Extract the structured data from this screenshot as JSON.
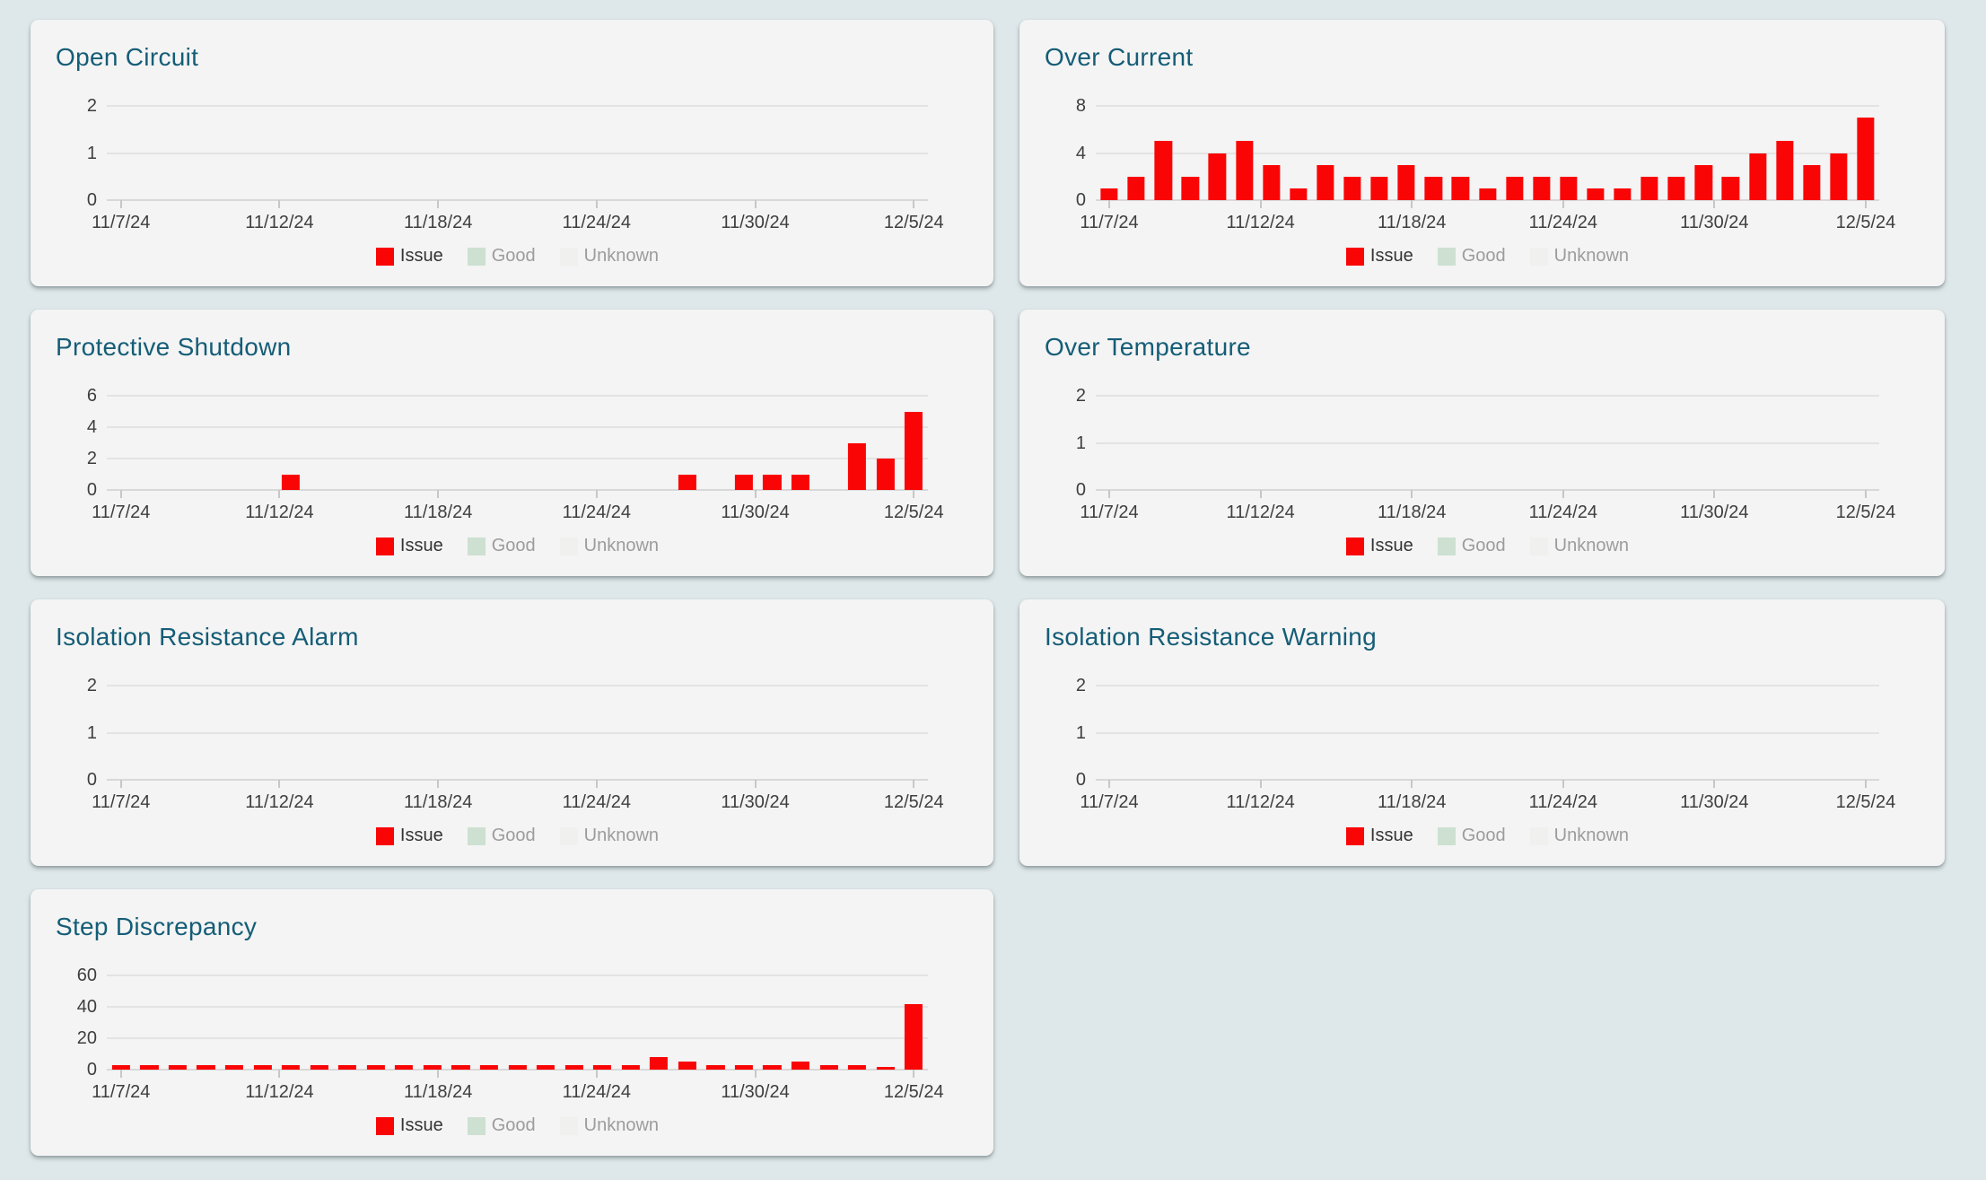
{
  "page": {
    "background": "#dee8ea"
  },
  "theme": {
    "card_bg": "#f4f4f4",
    "title_color": "#155d77",
    "issue_color": "#fa0505",
    "good_color": "#cde0d1",
    "unknown_color": "#f0f0ee",
    "axis_label_color": "#3e3e3e",
    "gridline_color": "#e3e3e3",
    "axis_line_color": "#d8d8d8",
    "tick_color": "#c7c7c7",
    "legend_active_label_color": "#343434",
    "legend_muted_label_color": "#9c9c9c"
  },
  "chart_data": {
    "type": "bar",
    "x_tick_labels": [
      "11/7/24",
      "11/12/24",
      "11/18/24",
      "11/24/24",
      "11/30/24",
      "12/5/24"
    ],
    "categories": [
      "11/7/24",
      "11/8/24",
      "11/9/24",
      "11/10/24",
      "11/11/24",
      "11/12/24",
      "11/13/24",
      "11/14/24",
      "11/15/24",
      "11/16/24",
      "11/17/24",
      "11/18/24",
      "11/19/24",
      "11/20/24",
      "11/21/24",
      "11/22/24",
      "11/23/24",
      "11/24/24",
      "11/25/24",
      "11/26/24",
      "11/27/24",
      "11/28/24",
      "11/29/24",
      "11/30/24",
      "12/1/24",
      "12/2/24",
      "12/3/24",
      "12/4/24",
      "12/5/24"
    ],
    "legend": [
      {
        "name": "Issue",
        "color": "#fa0505",
        "active": true
      },
      {
        "name": "Good",
        "color": "#cde0d1",
        "active": false
      },
      {
        "name": "Unknown",
        "color": "#f0f0ee",
        "active": false
      }
    ],
    "charts": [
      {
        "title": "Open Circuit",
        "ylim": [
          0,
          2
        ],
        "y_ticks": [
          2,
          1,
          0
        ],
        "series": [
          {
            "name": "Issue",
            "values": [
              0,
              0,
              0,
              0,
              0,
              0,
              0,
              0,
              0,
              0,
              0,
              0,
              0,
              0,
              0,
              0,
              0,
              0,
              0,
              0,
              0,
              0,
              0,
              0,
              0,
              0,
              0,
              0,
              0
            ]
          }
        ]
      },
      {
        "title": "Over Current",
        "ylim": [
          0,
          8
        ],
        "y_ticks": [
          8,
          4,
          0
        ],
        "series": [
          {
            "name": "Issue",
            "values": [
              1,
              2,
              5,
              2,
              4,
              5,
              3,
              1,
              3,
              2,
              2,
              3,
              2,
              2,
              1,
              2,
              2,
              2,
              1,
              1,
              2,
              2,
              3,
              2,
              4,
              5,
              3,
              4,
              7
            ]
          }
        ]
      },
      {
        "title": "Protective Shutdown",
        "ylim": [
          0,
          6
        ],
        "y_ticks": [
          6,
          4,
          2,
          0
        ],
        "series": [
          {
            "name": "Issue",
            "values": [
              0,
              0,
              0,
              0,
              0,
              0,
              1,
              0,
              0,
              0,
              0,
              0,
              0,
              0,
              0,
              0,
              0,
              0,
              0,
              0,
              1,
              0,
              1,
              1,
              1,
              0,
              3,
              2,
              5
            ]
          }
        ]
      },
      {
        "title": "Over Temperature",
        "ylim": [
          0,
          2
        ],
        "y_ticks": [
          2,
          1,
          0
        ],
        "series": [
          {
            "name": "Issue",
            "values": [
              0,
              0,
              0,
              0,
              0,
              0,
              0,
              0,
              0,
              0,
              0,
              0,
              0,
              0,
              0,
              0,
              0,
              0,
              0,
              0,
              0,
              0,
              0,
              0,
              0,
              0,
              0,
              0,
              0
            ]
          }
        ]
      },
      {
        "title": "Isolation Resistance Alarm",
        "ylim": [
          0,
          2
        ],
        "y_ticks": [
          2,
          1,
          0
        ],
        "series": [
          {
            "name": "Issue",
            "values": [
              0,
              0,
              0,
              0,
              0,
              0,
              0,
              0,
              0,
              0,
              0,
              0,
              0,
              0,
              0,
              0,
              0,
              0,
              0,
              0,
              0,
              0,
              0,
              0,
              0,
              0,
              0,
              0,
              0
            ]
          }
        ]
      },
      {
        "title": "Isolation Resistance Warning",
        "ylim": [
          0,
          2
        ],
        "y_ticks": [
          2,
          1,
          0
        ],
        "series": [
          {
            "name": "Issue",
            "values": [
              0,
              0,
              0,
              0,
              0,
              0,
              0,
              0,
              0,
              0,
              0,
              0,
              0,
              0,
              0,
              0,
              0,
              0,
              0,
              0,
              0,
              0,
              0,
              0,
              0,
              0,
              0,
              0,
              0
            ]
          }
        ]
      },
      {
        "title": "Step Discrepancy",
        "ylim": [
          0,
          60
        ],
        "y_ticks": [
          60,
          40,
          20,
          0
        ],
        "series": [
          {
            "name": "Issue",
            "values": [
              3,
              3,
              3,
              3,
              3,
              3,
              3,
              3,
              3,
              3,
              3,
              3,
              3,
              3,
              3,
              3,
              3,
              3,
              3,
              8,
              5,
              3,
              3,
              3,
              5,
              3,
              3,
              2,
              42
            ]
          }
        ]
      }
    ]
  }
}
